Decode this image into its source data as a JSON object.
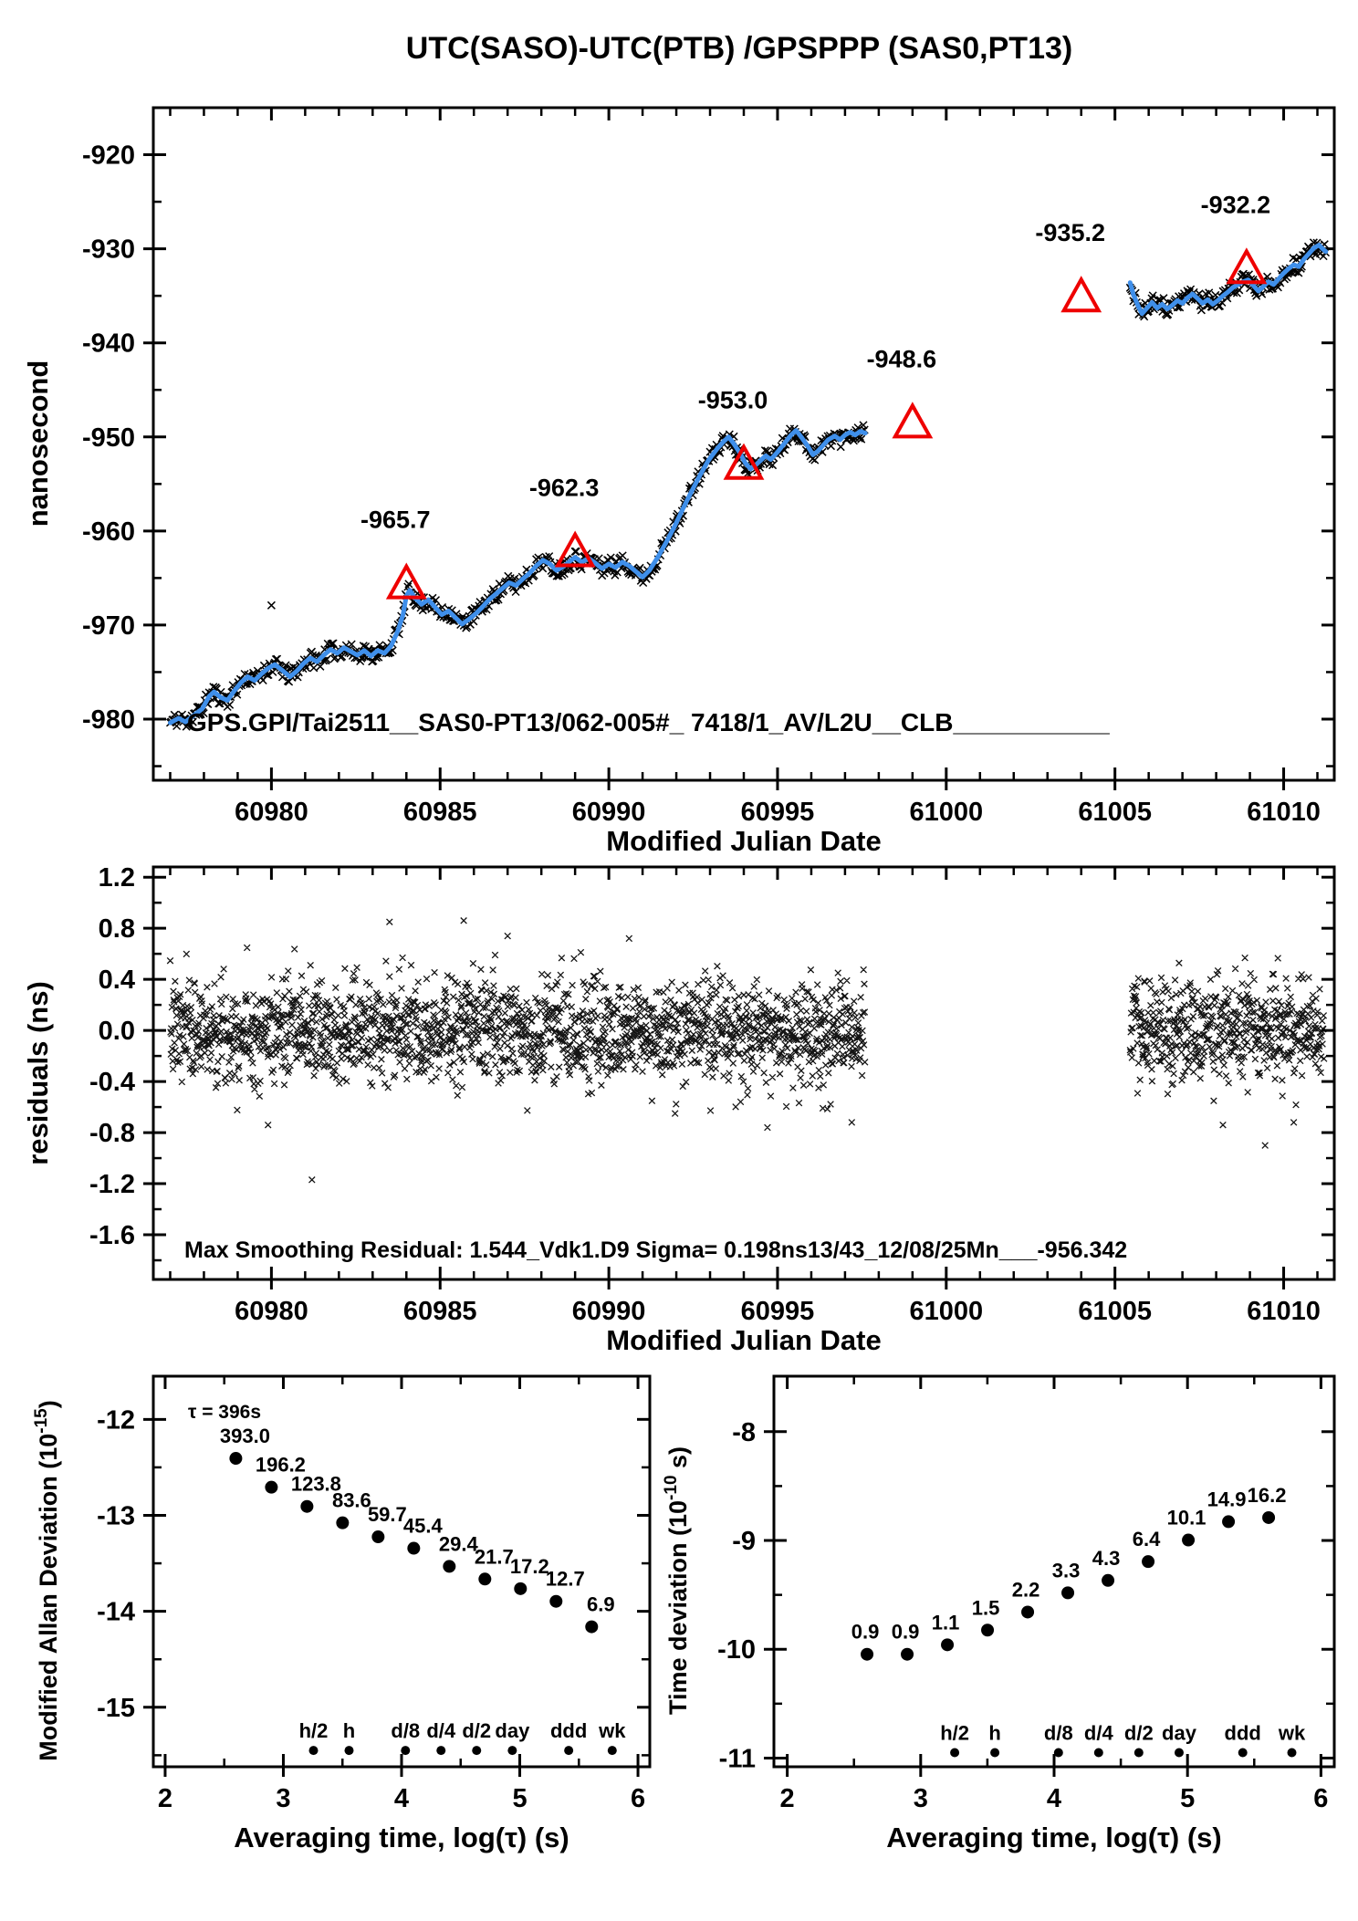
{
  "title": "UTC(SASO)-UTC(PTB)  /GPSPPP  (SAS0,PT13)",
  "colors": {
    "curve": "#3f8fea",
    "marker": "#000000",
    "accent": "#ee0000",
    "text": "#000000",
    "background": "#ffffff"
  },
  "chart_data": [
    {
      "id": "phase-difference",
      "type": "line",
      "ylabel": "nanosecond",
      "xlabel": "Modified Julian Date",
      "annotation": "GPS.GPI/Tai2511__SAS0-PT13/062-005#_  7418/1_AV/L2U__CLB___________",
      "xlim": [
        60976.5,
        61011.5
      ],
      "ylim": [
        -986.5,
        -915
      ],
      "xticks": [
        60980,
        60985,
        60990,
        60995,
        61000,
        61005,
        61010
      ],
      "xtick_labels": [
        "60980",
        "60985",
        "60990",
        "60995",
        "61000",
        "61005",
        "61010"
      ],
      "xminor_range": [
        60977,
        61011
      ],
      "yticks": [
        -920,
        -930,
        -940,
        -950,
        -960,
        -970,
        -980
      ],
      "ytick_labels": [
        "-920",
        "-930",
        "-940",
        "-950",
        "-960",
        "-970",
        "-980"
      ],
      "yminor": [
        -925,
        -935,
        -945,
        -955,
        -965,
        -975,
        -985
      ],
      "series": [
        {
          "name": "smoothed phase difference",
          "segments": [
            [
              [
                60977.0,
                -980.4
              ],
              [
                60977.25,
                -979.9
              ],
              [
                60977.45,
                -980.3
              ],
              [
                60977.7,
                -979.6
              ],
              [
                60977.95,
                -978.9
              ],
              [
                60978.15,
                -977.6
              ],
              [
                60978.3,
                -977.1
              ],
              [
                60978.5,
                -977.7
              ],
              [
                60978.7,
                -978.0
              ],
              [
                60978.9,
                -977.0
              ],
              [
                60979.1,
                -976.1
              ],
              [
                60979.3,
                -975.5
              ],
              [
                60979.5,
                -975.9
              ],
              [
                60979.7,
                -975.2
              ],
              [
                60979.9,
                -974.6
              ],
              [
                60980.1,
                -974.2
              ],
              [
                60980.35,
                -974.9
              ],
              [
                60980.55,
                -975.5
              ],
              [
                60980.75,
                -974.9
              ],
              [
                60980.95,
                -974.1
              ],
              [
                60981.15,
                -973.5
              ],
              [
                60981.35,
                -973.9
              ],
              [
                60981.55,
                -973.2
              ],
              [
                60981.75,
                -972.6
              ],
              [
                60981.95,
                -973.0
              ],
              [
                60982.15,
                -972.4
              ],
              [
                60982.35,
                -972.8
              ],
              [
                60982.55,
                -973.2
              ],
              [
                60982.75,
                -972.7
              ],
              [
                60982.95,
                -973.3
              ],
              [
                60983.15,
                -972.7
              ],
              [
                60983.35,
                -973.0
              ],
              [
                60983.55,
                -972.2
              ],
              [
                60983.75,
                -970.6
              ],
              [
                60983.9,
                -968.9
              ],
              [
                60984.0,
                -966.9
              ],
              [
                60984.1,
                -966.3
              ],
              [
                60984.25,
                -967.1
              ],
              [
                60984.45,
                -967.8
              ],
              [
                60984.65,
                -967.3
              ],
              [
                60984.85,
                -968.1
              ],
              [
                60985.05,
                -968.9
              ],
              [
                60985.25,
                -968.5
              ],
              [
                60985.45,
                -969.2
              ],
              [
                60985.65,
                -969.9
              ],
              [
                60985.85,
                -969.4
              ],
              [
                60986.05,
                -968.8
              ],
              [
                60986.25,
                -968.1
              ],
              [
                60986.45,
                -967.3
              ],
              [
                60986.65,
                -966.7
              ],
              [
                60986.85,
                -966.1
              ],
              [
                60987.05,
                -965.5
              ],
              [
                60987.25,
                -965.8
              ],
              [
                60987.45,
                -965.1
              ],
              [
                60987.65,
                -964.5
              ],
              [
                60987.85,
                -963.7
              ],
              [
                60988.05,
                -963.1
              ],
              [
                60988.25,
                -963.5
              ],
              [
                60988.45,
                -964.2
              ],
              [
                60988.65,
                -963.8
              ],
              [
                60988.85,
                -963.2
              ],
              [
                60989.0,
                -962.8
              ],
              [
                60989.2,
                -963.3
              ],
              [
                60989.4,
                -962.9
              ],
              [
                60989.6,
                -963.4
              ],
              [
                60989.8,
                -964.0
              ],
              [
                60990.0,
                -963.5
              ],
              [
                60990.2,
                -963.9
              ],
              [
                60990.4,
                -963.3
              ],
              [
                60990.6,
                -963.7
              ],
              [
                60990.8,
                -964.3
              ],
              [
                60991.0,
                -964.9
              ],
              [
                60991.2,
                -964.2
              ],
              [
                60991.45,
                -962.8
              ],
              [
                60991.7,
                -961.2
              ],
              [
                60991.95,
                -959.5
              ],
              [
                60992.2,
                -957.6
              ],
              [
                60992.45,
                -955.8
              ],
              [
                60992.7,
                -954.1
              ],
              [
                60992.95,
                -952.5
              ],
              [
                60993.2,
                -951.3
              ],
              [
                60993.4,
                -950.5
              ],
              [
                60993.55,
                -950.0
              ],
              [
                60993.7,
                -950.7
              ],
              [
                60993.9,
                -951.8
              ],
              [
                60994.05,
                -952.8
              ],
              [
                60994.2,
                -953.4
              ],
              [
                60994.35,
                -953.0
              ],
              [
                60994.5,
                -952.5
              ],
              [
                60994.65,
                -952.0
              ],
              [
                60994.8,
                -952.4
              ],
              [
                60995.0,
                -951.6
              ],
              [
                60995.2,
                -950.7
              ],
              [
                60995.4,
                -949.8
              ],
              [
                60995.55,
                -949.3
              ],
              [
                60995.7,
                -950.0
              ],
              [
                60995.9,
                -951.0
              ],
              [
                60996.05,
                -951.9
              ],
              [
                60996.2,
                -951.5
              ],
              [
                60996.35,
                -950.9
              ],
              [
                60996.5,
                -950.3
              ],
              [
                60996.7,
                -949.9
              ],
              [
                60996.85,
                -950.3
              ],
              [
                60997.0,
                -949.8
              ],
              [
                60997.15,
                -949.5
              ],
              [
                60997.3,
                -949.8
              ],
              [
                60997.45,
                -949.4
              ],
              [
                60997.6,
                -949.6
              ]
            ],
            [
              [
                61005.45,
                -933.6
              ],
              [
                61005.55,
                -934.9
              ],
              [
                61005.7,
                -936.2
              ],
              [
                61005.8,
                -936.9
              ],
              [
                61005.95,
                -936.3
              ],
              [
                61006.1,
                -935.7
              ],
              [
                61006.25,
                -936.3
              ],
              [
                61006.4,
                -935.9
              ],
              [
                61006.55,
                -936.4
              ],
              [
                61006.7,
                -936.0
              ],
              [
                61006.85,
                -935.5
              ],
              [
                61007.0,
                -935.8
              ],
              [
                61007.15,
                -935.2
              ],
              [
                61007.3,
                -934.8
              ],
              [
                61007.45,
                -935.3
              ],
              [
                61007.6,
                -935.8
              ],
              [
                61007.75,
                -935.4
              ],
              [
                61007.9,
                -935.9
              ],
              [
                61008.05,
                -935.5
              ],
              [
                61008.2,
                -935.0
              ],
              [
                61008.35,
                -934.6
              ],
              [
                61008.5,
                -934.1
              ],
              [
                61008.65,
                -933.8
              ],
              [
                61008.8,
                -933.5
              ],
              [
                61008.95,
                -933.3
              ],
              [
                61009.1,
                -933.9
              ],
              [
                61009.25,
                -934.5
              ],
              [
                61009.4,
                -934.0
              ],
              [
                61009.55,
                -933.5
              ],
              [
                61009.7,
                -933.8
              ],
              [
                61009.85,
                -933.2
              ],
              [
                61010.0,
                -932.6
              ],
              [
                61010.15,
                -932.1
              ],
              [
                61010.3,
                -931.7
              ],
              [
                61010.45,
                -931.9
              ],
              [
                61010.6,
                -931.1
              ],
              [
                61010.75,
                -930.5
              ],
              [
                61010.9,
                -929.9
              ],
              [
                61011.05,
                -929.6
              ],
              [
                61011.15,
                -930.0
              ],
              [
                61011.25,
                -930.3
              ]
            ]
          ]
        }
      ],
      "marker_noise": {
        "step": 0.032,
        "amplitude": 0.85,
        "seed": 11
      },
      "stray_markers": [
        [
          60980.0,
          -967.9
        ]
      ],
      "triangles": {
        "x": [
          60984.0,
          60989.0,
          60994.0,
          60999.0,
          61004.0,
          61008.9
        ],
        "y": [
          -965.7,
          -962.3,
          -953.0,
          -948.6,
          -935.2,
          -932.2
        ],
        "labels": [
          "-965.7",
          "-962.3",
          "-953.0",
          "-948.6",
          "-935.2",
          "-932.2"
        ]
      }
    },
    {
      "id": "residuals",
      "type": "scatter",
      "ylabel": "residuals (ns)",
      "xlabel": "Modified Julian Date",
      "annotation": "Max Smoothing Residual: 1.544_Vdk1.D9  Sigma= 0.198ns13/43_12/08/25Mn___-956.342",
      "xlim": [
        60976.5,
        61011.5
      ],
      "ylim": [
        -1.95,
        1.28
      ],
      "xticks": [
        60980,
        60985,
        60990,
        60995,
        61000,
        61005,
        61010
      ],
      "xtick_labels": [
        "60980",
        "60985",
        "60990",
        "60995",
        "61000",
        "61005",
        "61010"
      ],
      "xminor_range": [
        60977,
        61011
      ],
      "yticks": [
        1.2,
        0.8,
        0.4,
        0.0,
        -0.4,
        -0.8,
        -1.2,
        -1.6
      ],
      "ytick_labels": [
        "1.2",
        "0.8",
        "0.4",
        "0.0",
        "-0.4",
        "-0.8",
        "-1.2",
        "-1.6"
      ],
      "yminor": [
        1.0,
        0.6,
        0.2,
        -0.2,
        -0.6,
        -1.0,
        -1.4,
        -1.8
      ],
      "noise": {
        "segments": [
          [
            60977.0,
            60997.6
          ],
          [
            61005.45,
            61011.2
          ]
        ],
        "step": 0.0105,
        "sigma": 0.198,
        "clip": 0.66,
        "seed": 7
      },
      "outliers": [
        [
          60979.9,
          -0.74
        ],
        [
          60981.2,
          -1.17
        ],
        [
          60983.5,
          0.85
        ],
        [
          60985.7,
          0.86
        ],
        [
          60987.0,
          0.74
        ],
        [
          60990.6,
          0.72
        ],
        [
          60994.7,
          -0.76
        ],
        [
          60997.2,
          -0.72
        ],
        [
          61008.2,
          -0.74
        ],
        [
          61009.45,
          -0.9
        ],
        [
          61010.3,
          -0.72
        ]
      ]
    },
    {
      "id": "modified-allan-deviation",
      "type": "scatter",
      "ylabel_main": "Modified Allan Deviation (10",
      "ylabel_sup": "-15",
      "ylabel_close": ")",
      "xlabel": "Averaging time, log(τ) (s)",
      "annotation": "τ = 396s",
      "xlim": [
        1.9,
        6.1
      ],
      "ylim": [
        -15.62,
        -11.55
      ],
      "xticks": [
        2,
        3,
        4,
        5,
        6
      ],
      "xtick_labels": [
        "2",
        "3",
        "4",
        "5",
        "6"
      ],
      "xminor": [
        2.5,
        3.5,
        4.5,
        5.5
      ],
      "yticks": [
        -12,
        -13,
        -14,
        -15
      ],
      "ytick_labels": [
        "-12",
        "-13",
        "-14",
        "-15"
      ],
      "yminor": [
        -12.5,
        -13.5,
        -14.5,
        -15.5
      ],
      "x": [
        2.598,
        2.899,
        3.2,
        3.501,
        3.802,
        4.103,
        4.404,
        4.705,
        5.006,
        5.307,
        5.608
      ],
      "y": [
        -12.406,
        -12.707,
        -12.907,
        -13.078,
        -13.224,
        -13.343,
        -13.532,
        -13.664,
        -13.764,
        -13.896,
        -14.161
      ],
      "point_labels": [
        "393.0",
        "196.2",
        "123.8",
        "83.6",
        "59.7",
        "45.4",
        "29.4",
        "21.7",
        "17.2",
        "12.7",
        "6.9"
      ],
      "ref_markers": {
        "x": [
          3.255,
          3.556,
          4.033,
          4.334,
          4.635,
          4.937,
          5.414,
          5.782
        ],
        "labels": [
          "h/2",
          "h",
          "d/8",
          "d/4",
          "d/2",
          "day",
          "ddd",
          "wk"
        ],
        "y": -15.45
      }
    },
    {
      "id": "time-deviation",
      "type": "scatter",
      "ylabel_main": "Time deviation (10",
      "ylabel_sup": "-10",
      "ylabel_close": " s)",
      "xlabel": "Averaging time, log(τ) (s)",
      "xlim": [
        1.9,
        6.1
      ],
      "ylim": [
        -11.08,
        -7.49
      ],
      "xticks": [
        2,
        3,
        4,
        5,
        6
      ],
      "xtick_labels": [
        "2",
        "3",
        "4",
        "5",
        "6"
      ],
      "xminor": [
        2.5,
        3.5,
        4.5,
        5.5
      ],
      "yticks": [
        -8,
        -9,
        -10,
        -11
      ],
      "ytick_labels": [
        "-8",
        "-9",
        "-10",
        "-11"
      ],
      "yminor": [
        -8.5,
        -9.5,
        -10.5
      ],
      "x": [
        2.598,
        2.899,
        3.2,
        3.501,
        3.802,
        4.103,
        4.404,
        4.705,
        5.006,
        5.307,
        5.608
      ],
      "y": [
        -10.046,
        -10.046,
        -9.959,
        -9.824,
        -9.658,
        -9.481,
        -9.367,
        -9.194,
        -8.996,
        -8.827,
        -8.79
      ],
      "point_labels": [
        "0.9",
        "0.9",
        "1.1",
        "1.5",
        "2.2",
        "3.3",
        "4.3",
        "6.4",
        "10.1",
        "14.9",
        "16.2"
      ],
      "ref_markers": {
        "x": [
          3.255,
          3.556,
          4.033,
          4.334,
          4.635,
          4.937,
          5.414,
          5.782
        ],
        "labels": [
          "h/2",
          "h",
          "d/8",
          "d/4",
          "d/2",
          "day",
          "ddd",
          "wk"
        ],
        "y": -10.95
      }
    }
  ]
}
